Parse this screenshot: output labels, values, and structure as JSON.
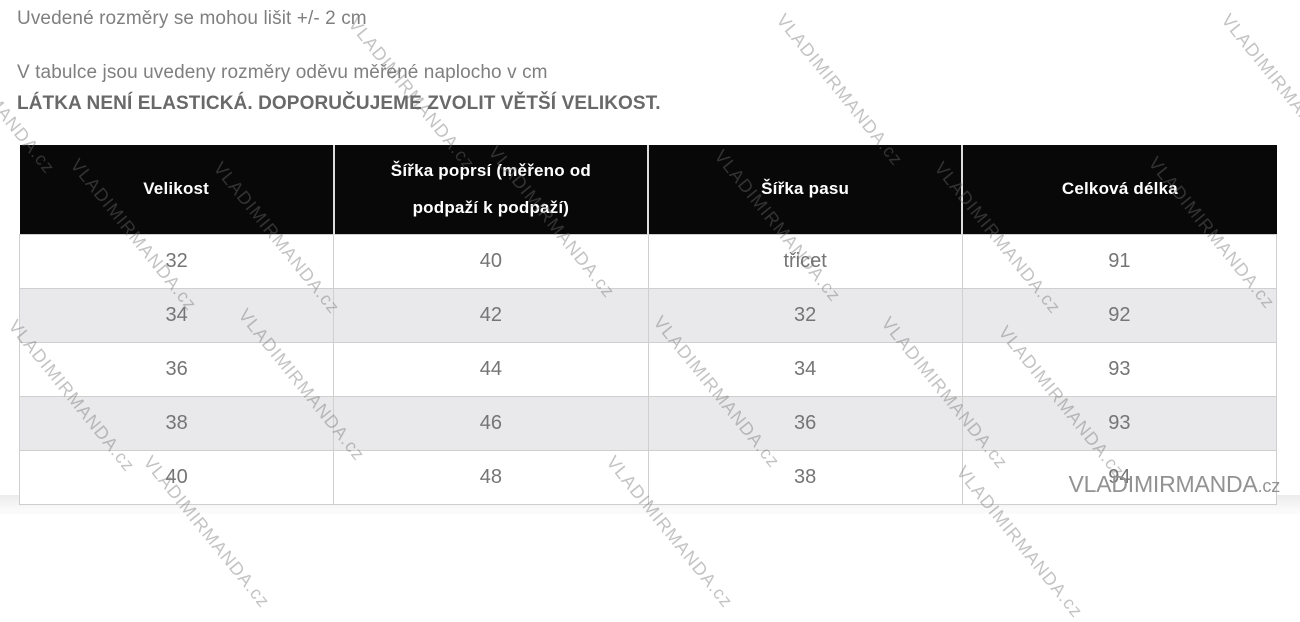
{
  "intro": {
    "line1": "Uvedené rozměry se mohou lišit +/- 2 cm",
    "line2": "V tabulce jsou uvedeny rozměry oděvu měřené naplocho v cm",
    "line3": "LÁTKA NENÍ ELASTICKÁ. DOPORUČUJEME ZVOLIT VĚTŠÍ VELIKOST."
  },
  "table": {
    "headers": [
      "Velikost",
      "Šířka poprsí (měřeno od podpaží k podpaží)",
      "Šířka pasu",
      "Celková délka"
    ],
    "rows": [
      [
        "32",
        "40",
        "třicet",
        "91"
      ],
      [
        "34",
        "42",
        "32",
        "92"
      ],
      [
        "36",
        "44",
        "34",
        "93"
      ],
      [
        "38",
        "46",
        "36",
        "93"
      ],
      [
        "40",
        "48",
        "38",
        "94"
      ]
    ]
  },
  "watermark": {
    "text": "VLADIMIRMANDA.cz"
  },
  "logo": {
    "name": "VLADIMIRMANDA",
    "tld": ".cz"
  },
  "colors": {
    "header_bg": "#080808",
    "header_text": "#ffffff",
    "row_alt_bg": "#e9e8ea",
    "cell_border": "#cfcfcf",
    "cell_text": "#757575",
    "intro_text": "#7f7f7f",
    "logo_text": "#929292"
  }
}
